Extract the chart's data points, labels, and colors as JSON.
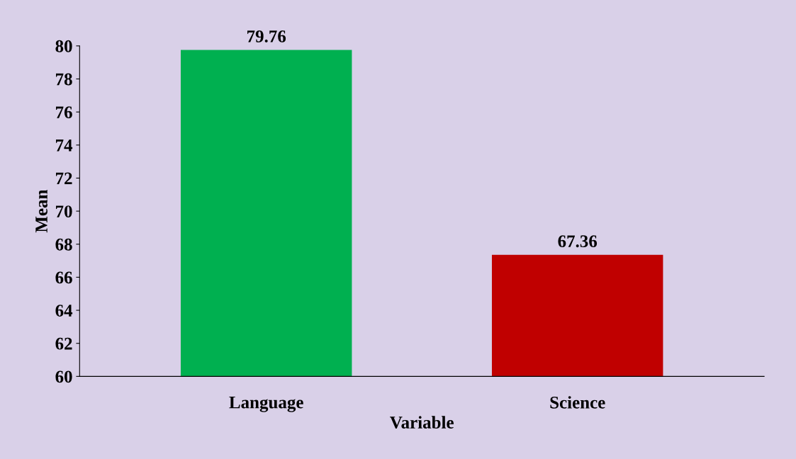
{
  "chart_data": {
    "type": "bar",
    "xlabel": "Variable",
    "ylabel": "Mean",
    "categories": [
      "Language",
      "Science"
    ],
    "values": [
      79.76,
      67.36
    ],
    "colors": [
      "#00b050",
      "#c00000"
    ],
    "ylim": [
      60,
      80
    ],
    "yticks": [
      60,
      62,
      64,
      66,
      68,
      70,
      72,
      74,
      76,
      78,
      80
    ],
    "data_labels": true,
    "grid": false,
    "legend": false
  }
}
